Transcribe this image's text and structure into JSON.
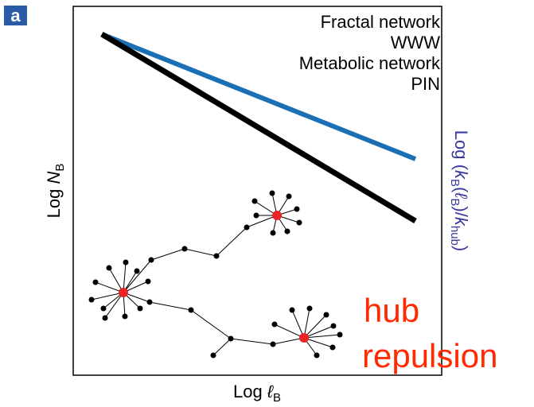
{
  "panel_label": "a",
  "legend": [
    "Fractal network",
    "WWW",
    "Metabolic network",
    "PIN"
  ],
  "y_label": {
    "prefix": "Log ",
    "symbol": "N",
    "subscript": "B"
  },
  "x_label": {
    "prefix": "Log ",
    "symbol": "ℓ",
    "subscript": "B"
  },
  "y2_label": {
    "prefix": "Log (",
    "k1": "k",
    "sub1": "B",
    "open": "(",
    "l": "ℓ",
    "sub2": "B",
    "close": ")/",
    "k2": "k",
    "sub3": "hub",
    "end": ")"
  },
  "annotation": [
    "hub",
    "repulsion"
  ]
}
